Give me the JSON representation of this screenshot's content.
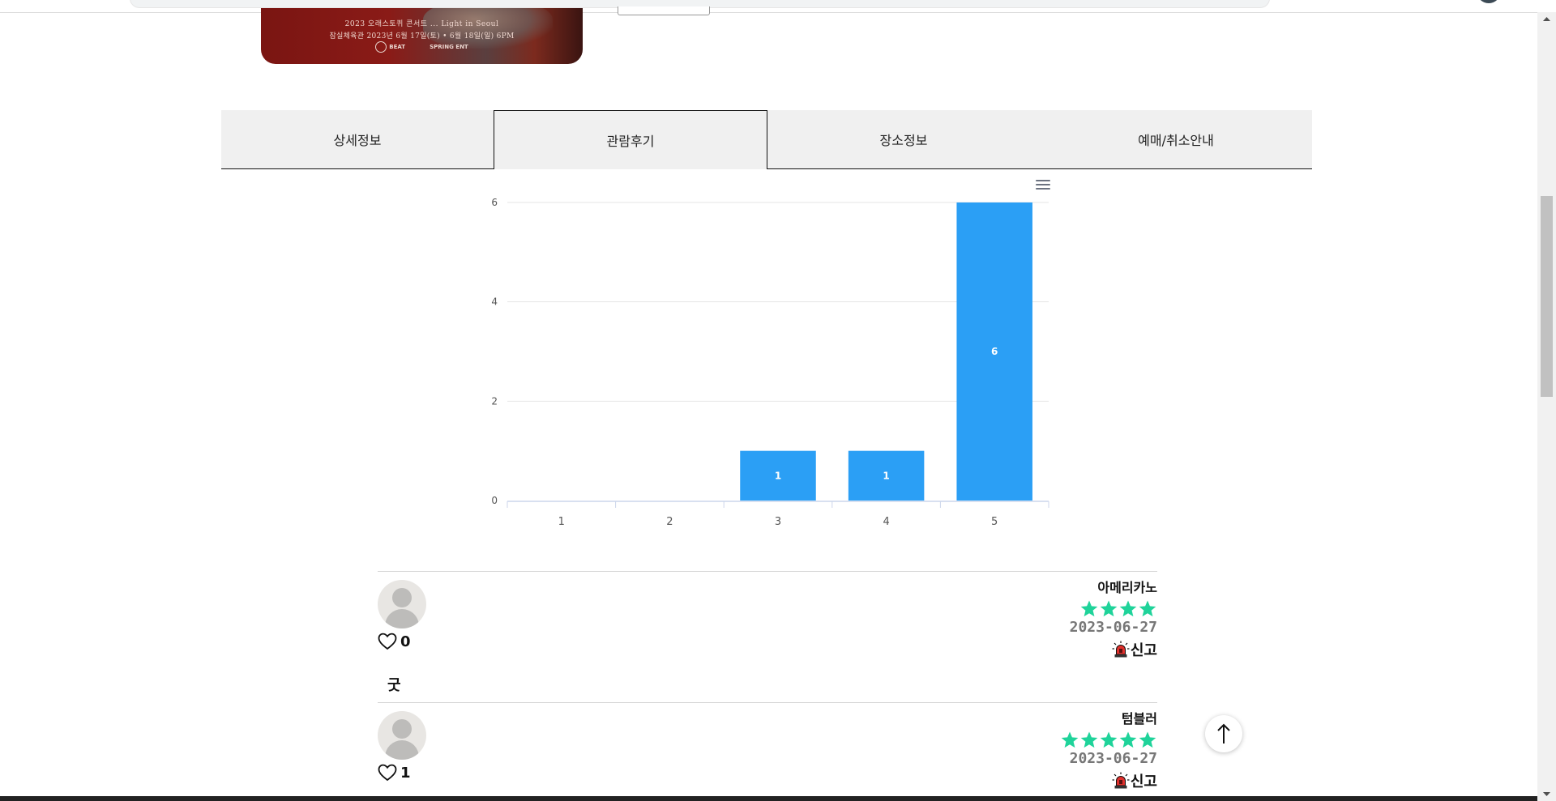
{
  "poster": {
    "line1": "2023 오래스토퀴 콘서트 ... Light in Seoul",
    "line2": "잠실체육관 2023년 6월 17일(토) • 6월 18일(일) 6PM",
    "logo1": "BEAT",
    "logo2": "SPRING ENT"
  },
  "tabs": [
    {
      "label": "상세정보",
      "active": false
    },
    {
      "label": "관람후기",
      "active": true
    },
    {
      "label": "장소정보",
      "active": false
    },
    {
      "label": "예매/취소안내",
      "active": false
    }
  ],
  "chart_data": {
    "type": "bar",
    "categories": [
      "1",
      "2",
      "3",
      "4",
      "5"
    ],
    "values": [
      0,
      0,
      1,
      1,
      6
    ],
    "ylim": [
      0,
      6
    ],
    "yticks": [
      0,
      2,
      4,
      6
    ],
    "title": "",
    "xlabel": "",
    "ylabel": "",
    "grid": true,
    "bar_color": "#2b9ff5",
    "data_labels": true
  },
  "reviews": [
    {
      "nickname": "아메리카노",
      "stars": 4,
      "date": "2023-06-27",
      "report_label": "신고",
      "likes": "0",
      "text": "굿"
    },
    {
      "nickname": "텀블러",
      "stars": 5,
      "date": "2023-06-27",
      "report_label": "신고",
      "likes": "1",
      "text": ""
    }
  ],
  "colors": {
    "star": "#1fd39a",
    "accent": "#2b9ff5"
  },
  "icons": {
    "like": "heart-outline-icon",
    "report": "siren-icon",
    "to_top": "arrow-up-icon",
    "chart_menu": "hamburger-menu-icon"
  }
}
